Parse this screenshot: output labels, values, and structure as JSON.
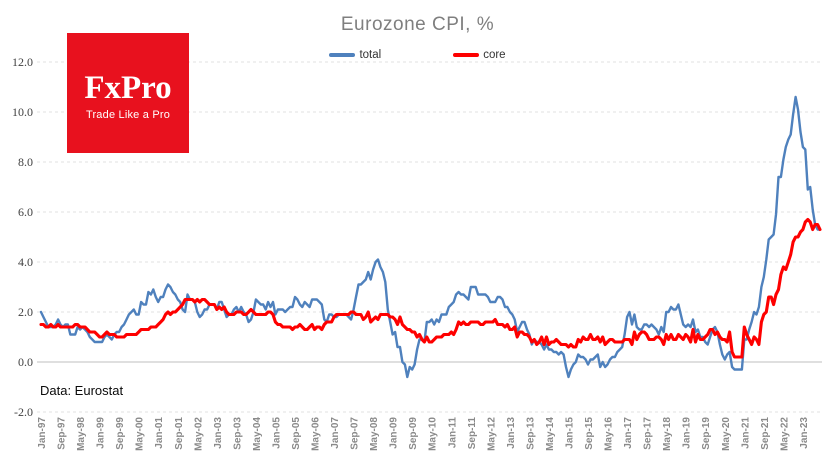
{
  "logo": {
    "text": "FxPro",
    "tagline": "Trade Like a Pro",
    "color": "#e8111e"
  },
  "chart_data": {
    "type": "line",
    "title": "Eurozone CPI, %",
    "source": "Data: Eurostat",
    "ylim": [
      -2.0,
      12.0
    ],
    "y_ticks": [
      "-2.0",
      "0.0",
      "2.0",
      "4.0",
      "6.0",
      "8.0",
      "10.0",
      "12.0"
    ],
    "grid": "dashed horizontal, solid zero line",
    "legend_position": "top-center",
    "x_start": "Jan-97",
    "x_end": "Aug-23",
    "x_tick_labels": [
      "Jan-97",
      "Sep-97",
      "May-98",
      "Jan-99",
      "Sep-99",
      "May-00",
      "Jan-01",
      "Sep-01",
      "May-02",
      "Jan-03",
      "Sep-03",
      "May-04",
      "Jan-05",
      "Sep-05",
      "May-06",
      "Jan-07",
      "Sep-07",
      "May-08",
      "Jan-09",
      "Sep-09",
      "May-10",
      "Jan-11",
      "Sep-11",
      "May-12",
      "Jan-13",
      "Sep-13",
      "May-14",
      "Jan-15",
      "Sep-15",
      "May-16",
      "Jan-17",
      "Sep-17",
      "May-18",
      "Jan-19",
      "Sep-19",
      "May-20",
      "Jan-21",
      "Sep-21",
      "May-22",
      "Jan-23"
    ],
    "x_tick_interval_months": 8,
    "series": [
      {
        "name": "total",
        "color": "#4f81bd",
        "values": [
          2.0,
          1.8,
          1.6,
          1.4,
          1.4,
          1.4,
          1.5,
          1.7,
          1.5,
          1.4,
          1.5,
          1.5,
          1.1,
          1.1,
          1.1,
          1.4,
          1.3,
          1.4,
          1.3,
          1.2,
          1.0,
          0.9,
          0.8,
          0.8,
          0.8,
          0.8,
          1.0,
          1.1,
          1.0,
          0.9,
          1.1,
          1.2,
          1.2,
          1.4,
          1.5,
          1.7,
          1.9,
          2.0,
          2.1,
          1.9,
          1.9,
          2.4,
          2.3,
          2.3,
          2.8,
          2.7,
          2.9,
          2.6,
          2.4,
          2.6,
          2.6,
          2.9,
          3.1,
          3.0,
          2.8,
          2.7,
          2.5,
          2.4,
          2.1,
          2.0,
          2.7,
          2.5,
          2.5,
          2.4,
          2.0,
          1.8,
          1.9,
          2.1,
          2.1,
          2.3,
          2.3,
          2.3,
          2.1,
          2.4,
          2.4,
          2.1,
          1.8,
          1.9,
          1.9,
          2.1,
          2.2,
          2.0,
          2.2,
          2.0,
          1.9,
          1.6,
          1.7,
          2.0,
          2.5,
          2.4,
          2.3,
          2.3,
          2.1,
          2.4,
          2.2,
          2.4,
          1.9,
          2.1,
          2.1,
          2.1,
          2.0,
          2.1,
          2.2,
          2.2,
          2.6,
          2.5,
          2.3,
          2.2,
          2.4,
          2.3,
          2.2,
          2.5,
          2.5,
          2.5,
          2.4,
          2.3,
          1.7,
          1.6,
          1.9,
          1.9,
          1.8,
          1.8,
          1.9,
          1.9,
          1.9,
          1.9,
          1.8,
          1.7,
          2.1,
          2.6,
          3.1,
          3.1,
          3.2,
          3.3,
          3.6,
          3.3,
          3.7,
          4.0,
          4.1,
          3.8,
          3.6,
          3.2,
          2.1,
          1.6,
          1.1,
          1.2,
          0.6,
          0.6,
          0.0,
          -0.1,
          -0.6,
          -0.2,
          -0.3,
          -0.1,
          0.5,
          0.9,
          0.9,
          0.8,
          1.6,
          1.6,
          1.7,
          1.5,
          1.7,
          1.6,
          1.9,
          1.9,
          1.9,
          2.2,
          2.3,
          2.4,
          2.7,
          2.8,
          2.7,
          2.7,
          2.6,
          2.5,
          3.0,
          3.0,
          3.0,
          2.7,
          2.7,
          2.7,
          2.7,
          2.6,
          2.4,
          2.4,
          2.4,
          2.6,
          2.6,
          2.5,
          2.2,
          2.2,
          2.0,
          1.9,
          1.7,
          1.2,
          1.4,
          1.6,
          1.6,
          1.3,
          1.1,
          0.7,
          0.9,
          0.8,
          0.8,
          0.7,
          0.5,
          0.7,
          0.5,
          0.5,
          0.4,
          0.4,
          0.3,
          0.4,
          0.3,
          -0.2,
          -0.6,
          -0.3,
          -0.1,
          0.0,
          0.3,
          0.2,
          0.2,
          0.1,
          -0.1,
          0.1,
          0.1,
          0.2,
          0.3,
          -0.2,
          0.0,
          -0.2,
          -0.1,
          0.1,
          0.2,
          0.2,
          0.4,
          0.5,
          0.6,
          1.1,
          1.8,
          2.0,
          1.5,
          1.9,
          1.4,
          1.3,
          1.3,
          1.5,
          1.5,
          1.4,
          1.5,
          1.4,
          1.3,
          1.1,
          1.4,
          1.2,
          2.0,
          2.0,
          2.2,
          2.1,
          2.1,
          2.3,
          1.9,
          1.5,
          1.4,
          1.5,
          1.4,
          1.7,
          1.2,
          1.3,
          1.0,
          1.0,
          0.8,
          0.7,
          1.0,
          1.3,
          1.4,
          1.2,
          0.7,
          0.3,
          0.1,
          0.3,
          0.4,
          -0.2,
          -0.3,
          -0.3,
          -0.3,
          -0.3,
          0.9,
          0.9,
          1.3,
          1.6,
          2.0,
          1.9,
          2.2,
          3.0,
          3.4,
          4.1,
          4.9,
          5.0,
          5.1,
          5.9,
          7.4,
          7.4,
          8.1,
          8.6,
          8.9,
          9.1,
          9.9,
          10.6,
          10.1,
          9.2,
          8.6,
          8.5,
          6.9,
          7.0,
          6.1,
          5.5,
          5.3,
          5.3
        ]
      },
      {
        "name": "core",
        "color": "#fe0000",
        "values": [
          1.5,
          1.5,
          1.4,
          1.4,
          1.5,
          1.4,
          1.4,
          1.5,
          1.4,
          1.4,
          1.4,
          1.4,
          1.4,
          1.4,
          1.5,
          1.5,
          1.4,
          1.4,
          1.4,
          1.3,
          1.2,
          1.2,
          1.2,
          1.1,
          1.0,
          1.0,
          1.1,
          1.2,
          1.1,
          1.1,
          1.1,
          1.0,
          1.0,
          1.0,
          1.0,
          1.1,
          1.1,
          1.1,
          1.1,
          1.1,
          1.2,
          1.3,
          1.3,
          1.3,
          1.3,
          1.4,
          1.4,
          1.4,
          1.5,
          1.6,
          1.7,
          1.9,
          2.0,
          1.9,
          2.0,
          2.0,
          2.1,
          2.2,
          2.3,
          2.5,
          2.5,
          2.5,
          2.5,
          2.4,
          2.5,
          2.4,
          2.5,
          2.5,
          2.4,
          2.3,
          2.3,
          2.3,
          2.1,
          2.2,
          2.1,
          2.2,
          2.0,
          1.9,
          1.9,
          1.9,
          2.0,
          2.0,
          2.0,
          1.9,
          1.9,
          2.0,
          2.1,
          2.0,
          1.9,
          1.9,
          1.9,
          1.9,
          1.9,
          2.0,
          2.0,
          1.9,
          1.6,
          1.5,
          1.5,
          1.4,
          1.4,
          1.4,
          1.4,
          1.3,
          1.4,
          1.4,
          1.5,
          1.4,
          1.3,
          1.3,
          1.4,
          1.5,
          1.3,
          1.4,
          1.4,
          1.3,
          1.5,
          1.6,
          1.6,
          1.6,
          1.8,
          1.9,
          1.9,
          1.9,
          1.9,
          1.9,
          1.9,
          2.0,
          2.0,
          1.9,
          1.9,
          1.9,
          1.7,
          1.8,
          2.0,
          1.6,
          1.7,
          1.8,
          1.7,
          1.9,
          1.9,
          1.9,
          1.9,
          1.8,
          1.8,
          1.7,
          1.5,
          1.8,
          1.5,
          1.4,
          1.3,
          1.3,
          1.2,
          1.2,
          1.0,
          1.1,
          0.9,
          0.8,
          1.0,
          0.8,
          0.8,
          0.9,
          1.0,
          1.0,
          1.0,
          1.1,
          1.1,
          1.1,
          1.2,
          1.1,
          1.3,
          1.6,
          1.5,
          1.6,
          1.5,
          1.5,
          1.6,
          1.6,
          1.6,
          1.6,
          1.5,
          1.5,
          1.6,
          1.6,
          1.6,
          1.6,
          1.7,
          1.5,
          1.5,
          1.5,
          1.4,
          1.5,
          1.3,
          1.3,
          1.4,
          1.0,
          1.2,
          1.2,
          1.1,
          1.1,
          1.0,
          0.8,
          0.9,
          0.7,
          0.8,
          1.0,
          0.7,
          1.0,
          0.7,
          0.8,
          0.8,
          0.9,
          0.8,
          0.7,
          0.7,
          0.7,
          0.6,
          0.7,
          0.6,
          0.6,
          0.9,
          0.8,
          1.0,
          0.9,
          0.9,
          1.1,
          0.9,
          0.9,
          1.0,
          0.8,
          1.0,
          0.7,
          0.8,
          0.9,
          0.9,
          0.8,
          0.8,
          0.8,
          0.8,
          0.9,
          0.9,
          0.9,
          0.7,
          1.2,
          0.9,
          1.1,
          1.2,
          1.2,
          1.1,
          0.9,
          0.9,
          0.9,
          1.0,
          1.0,
          0.9,
          0.7,
          1.1,
          0.9,
          1.1,
          0.9,
          0.9,
          1.1,
          1.0,
          0.9,
          1.1,
          1.0,
          0.8,
          1.3,
          0.8,
          1.1,
          0.9,
          0.9,
          1.0,
          1.1,
          1.3,
          1.3,
          1.1,
          1.2,
          1.0,
          0.9,
          0.9,
          0.8,
          1.2,
          0.4,
          0.2,
          0.2,
          0.2,
          0.2,
          1.4,
          1.1,
          0.9,
          0.7,
          1.0,
          0.9,
          0.7,
          1.6,
          1.9,
          2.0,
          2.6,
          2.6,
          2.3,
          2.7,
          2.9,
          3.5,
          3.8,
          3.7,
          4.0,
          4.3,
          4.8,
          5.0,
          5.0,
          5.2,
          5.3,
          5.6,
          5.7,
          5.6,
          5.3,
          5.5,
          5.5,
          5.3
        ]
      }
    ]
  }
}
